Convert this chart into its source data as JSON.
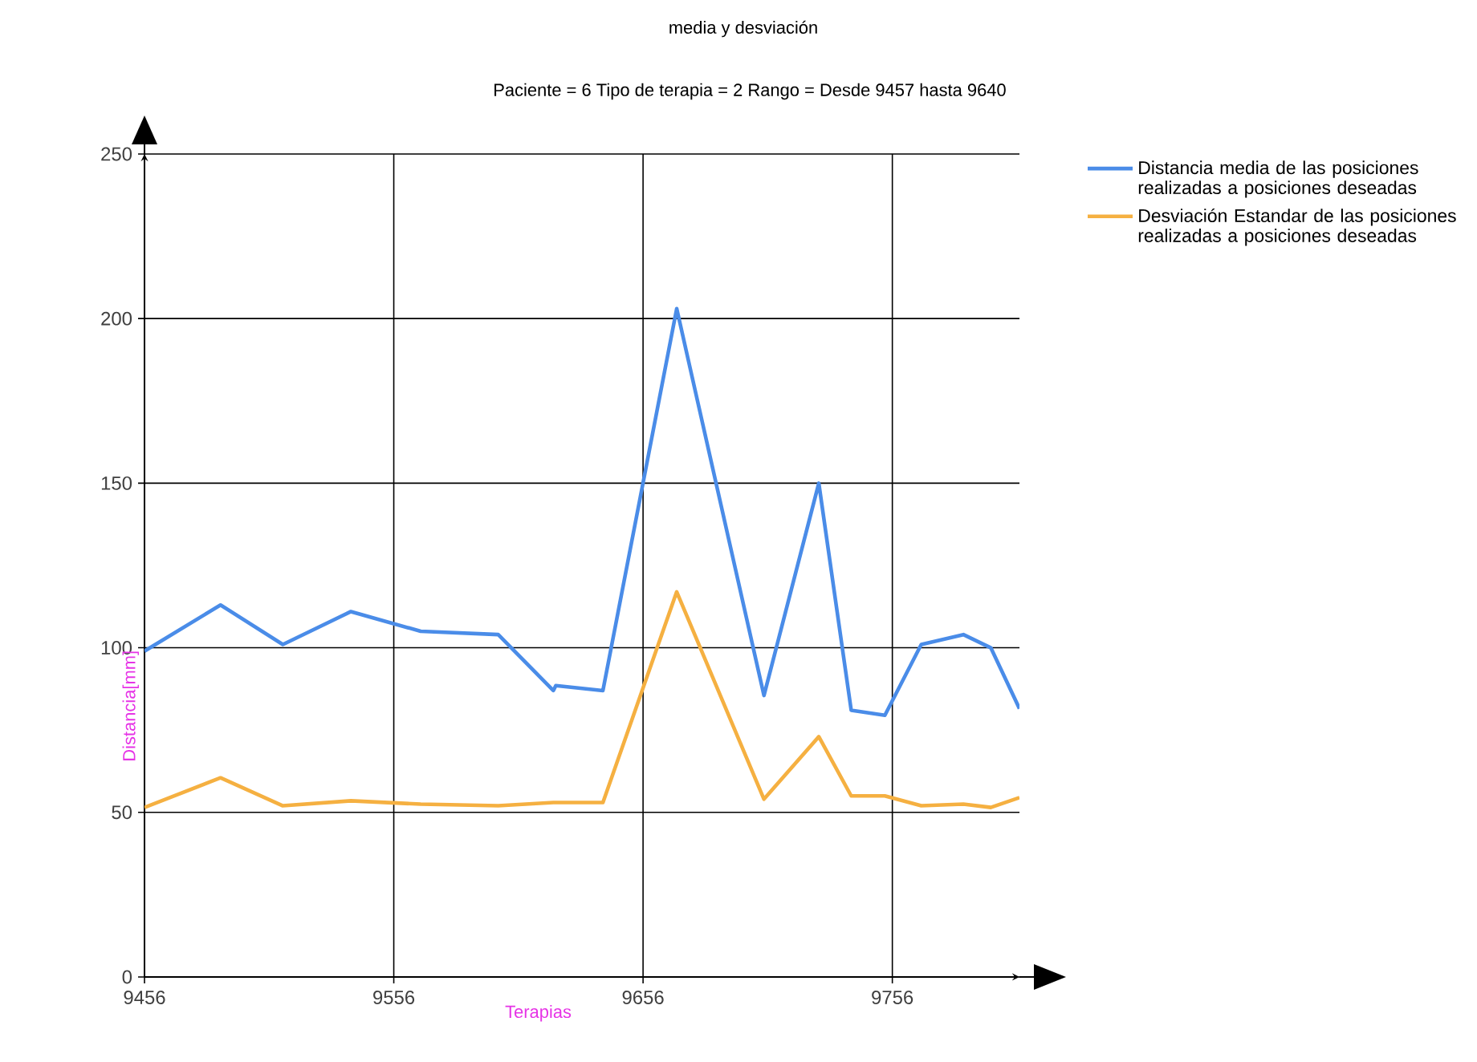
{
  "chart_data": {
    "type": "line",
    "title": "media y desviación",
    "subtitle": "Paciente = 6 Tipo de terapia = 2 Rango = Desde 9457 hasta 9640",
    "xlabel": "Terapias",
    "ylabel": "Distancia[mm]",
    "x": [
      9456,
      9486.5,
      9511.5,
      9538.8,
      9566.8,
      9597.9,
      9620,
      9621,
      9639.9,
      9669.5,
      9704.5,
      9726.5,
      9739.5,
      9753,
      9767.6,
      9784.5,
      9795.5,
      9807
    ],
    "series": [
      {
        "name": "Distancia media de las posiciones realizadas a posiciones deseadas",
        "color": "#4a8ce8",
        "values": [
          99,
          113,
          101,
          111,
          105,
          104,
          87,
          88.5,
          87,
          203,
          85.5,
          150,
          81,
          79.5,
          101,
          104,
          100,
          81.5
        ]
      },
      {
        "name": "Desviación Estandar de las posiciones realizadas a posiciones deseadas",
        "color": "#f5b041",
        "values": [
          51.5,
          60.5,
          52,
          53.5,
          52.5,
          52,
          53,
          53,
          53,
          117,
          54,
          73,
          55,
          55,
          52,
          52.5,
          51.5,
          54.5
        ]
      }
    ],
    "xlim": [
      9456,
      9807
    ],
    "ylim": [
      0,
      250
    ],
    "xticks": [
      9456,
      9556,
      9656,
      9756
    ],
    "yticks": [
      0,
      50,
      100,
      150,
      200,
      250
    ],
    "grid": true,
    "legend": "top right",
    "marker": "none",
    "line_style": "solid"
  }
}
